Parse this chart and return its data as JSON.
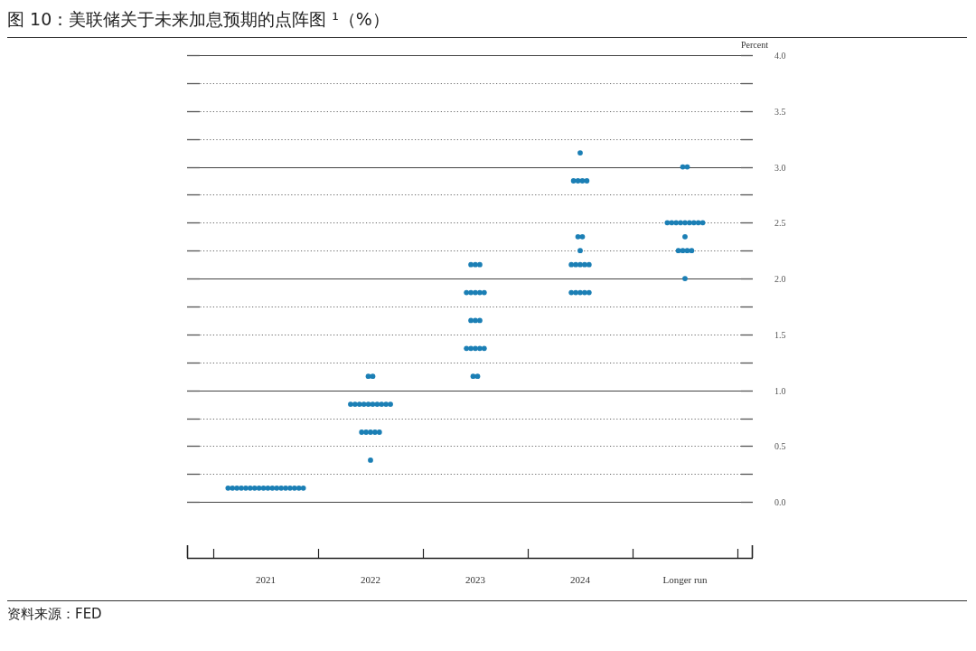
{
  "chart_data": {
    "type": "scatter",
    "title": "图 10：美联储关于未来加息预期的点阵图 ¹（%）",
    "ylabel": "Percent",
    "categories": [
      "2021",
      "2022",
      "2023",
      "2024",
      "Longer run"
    ],
    "series": [
      {
        "color": "#1b7fb5",
        "values": [
          0.125,
          1.125,
          2.125,
          3.125,
          3
        ]
      },
      {
        "color": "#1b7fb5",
        "values": [
          0.125,
          1.125,
          2.125,
          2.875,
          3
        ]
      },
      {
        "color": "#1b7fb5",
        "values": [
          0.125,
          0.875,
          2.125,
          2.875,
          2.5
        ]
      },
      {
        "color": "#1b7fb5",
        "values": [
          0.125,
          0.875,
          1.875,
          2.875,
          2.5
        ]
      },
      {
        "color": "#1b7fb5",
        "values": [
          0.125,
          0.875,
          1.875,
          2.875,
          2.5
        ]
      },
      {
        "color": "#1b7fb5",
        "values": [
          0.125,
          0.875,
          1.875,
          2.375,
          2.5
        ]
      },
      {
        "color": "#1b7fb5",
        "values": [
          0.125,
          0.875,
          1.875,
          2.375,
          2.5
        ]
      },
      {
        "color": "#1b7fb5",
        "values": [
          0.125,
          0.875,
          1.875,
          2.25,
          2.5
        ]
      },
      {
        "color": "#1b7fb5",
        "values": [
          0.125,
          0.875,
          1.625,
          2.125,
          2.5
        ]
      },
      {
        "color": "#1b7fb5",
        "values": [
          0.125,
          0.875,
          1.625,
          2.125,
          2.5
        ]
      },
      {
        "color": "#1b7fb5",
        "values": [
          0.125,
          0.875,
          1.625,
          2.125,
          2.5
        ]
      },
      {
        "color": "#1b7fb5",
        "values": [
          0.125,
          0.875,
          1.375,
          2.125,
          2.375
        ]
      },
      {
        "color": "#1b7fb5",
        "values": [
          0.125,
          0.625,
          1.375,
          2.125,
          2.25
        ]
      },
      {
        "color": "#1b7fb5",
        "values": [
          0.125,
          0.625,
          1.375,
          1.875,
          2.25
        ]
      },
      {
        "color": "#1b7fb5",
        "values": [
          0.125,
          0.625,
          1.375,
          1.875,
          2.25
        ]
      },
      {
        "color": "#1b7fb5",
        "values": [
          0.125,
          0.625,
          1.375,
          1.875,
          2.25
        ]
      },
      {
        "color": "#1b7fb5",
        "values": [
          0.125,
          0.625,
          1.125,
          1.875,
          2
        ]
      },
      {
        "color": "#1b7fb5",
        "values": [
          0.125,
          0.375,
          1.125,
          1.875,
          null
        ]
      }
    ],
    "ylim": [
      -0.5,
      4
    ],
    "yticks": [
      {
        "value": 0,
        "label": "0.0"
      },
      {
        "value": 0.25,
        "label": null
      },
      0.5,
      {
        "value": 0.75,
        "label": null
      },
      {
        "value": 1,
        "label": "1.0"
      },
      {
        "value": 1.25,
        "label": null
      },
      1.5,
      {
        "value": 1.75,
        "label": null
      },
      {
        "value": 2,
        "label": "2.0"
      },
      {
        "value": 2.25,
        "label": null
      },
      2.5,
      {
        "value": 2.75,
        "label": null
      },
      {
        "value": 3,
        "label": "3.0"
      },
      {
        "value": 3.25,
        "label": null
      },
      3.5,
      {
        "value": 3.75,
        "label": null
      },
      {
        "value": 4,
        "label": "4.0"
      }
    ],
    "grid": "y",
    "marker": "circle",
    "annotations": [
      "资料来源：FED"
    ]
  }
}
